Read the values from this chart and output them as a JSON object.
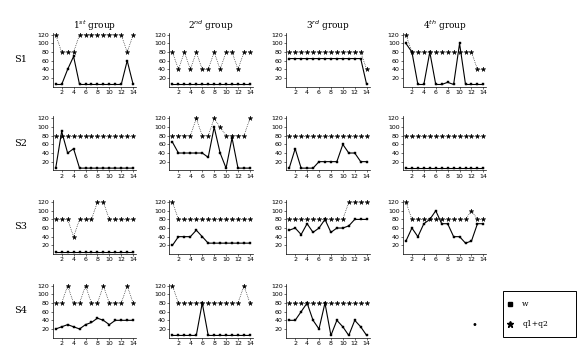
{
  "x": [
    1,
    2,
    3,
    4,
    5,
    6,
    7,
    8,
    9,
    10,
    11,
    12,
    13,
    14
  ],
  "col_titles": [
    "1$^{st}$ group",
    "2$^{nd}$ group",
    "3$^{rd}$ group",
    "4$^{th}$ group"
  ],
  "row_labels": [
    "S1",
    "S2",
    "S3",
    "S4"
  ],
  "legend_labels": [
    "w",
    "q1+q2"
  ],
  "w": {
    "S1": {
      "g1": [
        5,
        5,
        40,
        70,
        5,
        5,
        5,
        5,
        5,
        5,
        5,
        5,
        60,
        5
      ],
      "g2": [
        5,
        5,
        5,
        5,
        5,
        5,
        5,
        5,
        5,
        5,
        5,
        5,
        5,
        5
      ],
      "g3": [
        65,
        65,
        65,
        65,
        65,
        65,
        65,
        65,
        65,
        65,
        65,
        65,
        65,
        5
      ],
      "g4": [
        100,
        80,
        5,
        5,
        80,
        5,
        5,
        10,
        5,
        100,
        5,
        5,
        5,
        5
      ]
    },
    "S2": {
      "g1": [
        5,
        90,
        40,
        50,
        5,
        5,
        5,
        5,
        5,
        5,
        5,
        5,
        5,
        5
      ],
      "g2": [
        65,
        40,
        40,
        40,
        40,
        40,
        30,
        100,
        40,
        5,
        75,
        5,
        5,
        5
      ],
      "g3": [
        5,
        50,
        5,
        5,
        5,
        20,
        20,
        20,
        20,
        60,
        40,
        40,
        20,
        20
      ],
      "g4": [
        5,
        5,
        5,
        5,
        5,
        5,
        5,
        5,
        5,
        5,
        5,
        5,
        5,
        5
      ]
    },
    "S3": {
      "g1": [
        5,
        5,
        5,
        5,
        5,
        5,
        5,
        5,
        5,
        5,
        5,
        5,
        5,
        5
      ],
      "g2": [
        20,
        40,
        40,
        40,
        55,
        40,
        25,
        25,
        25,
        25,
        25,
        25,
        25,
        25
      ],
      "g3": [
        55,
        60,
        45,
        70,
        50,
        60,
        80,
        50,
        60,
        60,
        65,
        80,
        80,
        80
      ],
      "g4": [
        30,
        60,
        40,
        70,
        80,
        100,
        70,
        70,
        40,
        40,
        25,
        30,
        70,
        70
      ]
    },
    "S4": {
      "g1": [
        20,
        25,
        30,
        25,
        20,
        30,
        35,
        45,
        40,
        30,
        40,
        40,
        40,
        40
      ],
      "g2": [
        5,
        5,
        5,
        5,
        5,
        80,
        5,
        5,
        5,
        5,
        5,
        5,
        5,
        5
      ],
      "g3": [
        40,
        40,
        60,
        80,
        40,
        20,
        80,
        5,
        40,
        25,
        5,
        40,
        25,
        5
      ]
    }
  },
  "q": {
    "S1": {
      "g1": [
        120,
        80,
        80,
        80,
        120,
        120,
        120,
        120,
        120,
        120,
        120,
        120,
        80,
        120
      ],
      "g2": [
        80,
        40,
        80,
        40,
        80,
        40,
        40,
        80,
        40,
        80,
        80,
        40,
        80,
        80
      ],
      "g3": [
        80,
        80,
        80,
        80,
        80,
        80,
        80,
        80,
        80,
        80,
        80,
        80,
        80,
        40
      ],
      "g4": [
        120,
        80,
        80,
        80,
        80,
        80,
        80,
        80,
        80,
        80,
        80,
        80,
        40,
        40
      ]
    },
    "S2": {
      "g1": [
        80,
        80,
        80,
        80,
        80,
        80,
        80,
        80,
        80,
        80,
        80,
        80,
        80,
        80
      ],
      "g2": [
        80,
        80,
        80,
        80,
        120,
        80,
        80,
        120,
        100,
        80,
        80,
        80,
        80,
        120
      ],
      "g3": [
        80,
        80,
        80,
        80,
        80,
        80,
        80,
        80,
        80,
        80,
        80,
        80,
        80,
        80
      ],
      "g4": [
        80,
        80,
        80,
        80,
        80,
        80,
        80,
        80,
        80,
        80,
        80,
        80,
        80,
        80
      ]
    },
    "S3": {
      "g1": [
        80,
        80,
        80,
        40,
        80,
        80,
        80,
        120,
        120,
        80,
        80,
        80,
        80,
        80
      ],
      "g2": [
        120,
        80,
        80,
        80,
        80,
        80,
        80,
        80,
        80,
        80,
        80,
        80,
        80,
        80
      ],
      "g3": [
        80,
        80,
        80,
        80,
        80,
        80,
        80,
        80,
        80,
        80,
        120,
        120,
        120,
        120
      ],
      "g4": [
        120,
        80,
        80,
        80,
        80,
        80,
        80,
        80,
        80,
        80,
        80,
        100,
        80,
        80
      ]
    },
    "S4": {
      "g1": [
        80,
        80,
        120,
        80,
        80,
        120,
        80,
        80,
        120,
        80,
        80,
        80,
        120,
        80
      ],
      "g2": [
        120,
        80,
        80,
        80,
        80,
        80,
        80,
        80,
        80,
        80,
        80,
        80,
        120,
        80
      ],
      "g3": [
        80,
        80,
        80,
        80,
        80,
        80,
        80,
        80,
        80,
        80,
        80,
        80,
        80,
        80
      ]
    }
  }
}
